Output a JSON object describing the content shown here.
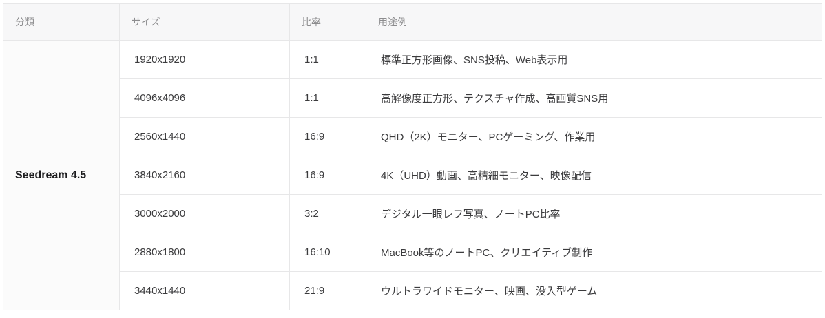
{
  "table": {
    "columns": [
      {
        "label": "分類"
      },
      {
        "label": "サイズ"
      },
      {
        "label": "比率"
      },
      {
        "label": "用途例"
      }
    ],
    "group_label": "Seedream 4.5",
    "rows": [
      {
        "size": "1920x1920",
        "ratio": "1:1",
        "usage": "標準正方形画像、SNS投稿、Web表示用"
      },
      {
        "size": "4096x4096",
        "ratio": "1:1",
        "usage": "高解像度正方形、テクスチャ作成、高画質SNS用"
      },
      {
        "size": "2560x1440",
        "ratio": "16:9",
        "usage": "QHD（2K）モニター、PCゲーミング、作業用"
      },
      {
        "size": "3840x2160",
        "ratio": "16:9",
        "usage": "4K（UHD）動画、高精細モニター、映像配信"
      },
      {
        "size": "3000x2000",
        "ratio": "3:2",
        "usage": "デジタル一眼レフ写真、ノートPC比率"
      },
      {
        "size": "2880x1800",
        "ratio": "16:10",
        "usage": "MacBook等のノートPC、クリエイティブ制作"
      },
      {
        "size": "3440x1440",
        "ratio": "21:9",
        "usage": "ウルトラワイドモニター、映画、没入型ゲーム"
      }
    ],
    "colors": {
      "header_bg": "#f7f7f8",
      "group_cell_bg": "#fbfbfb",
      "border": "#e7e7e8",
      "header_text": "#8c8c8e",
      "body_text": "#3b3b3d",
      "group_text": "#1c1c1e"
    }
  }
}
